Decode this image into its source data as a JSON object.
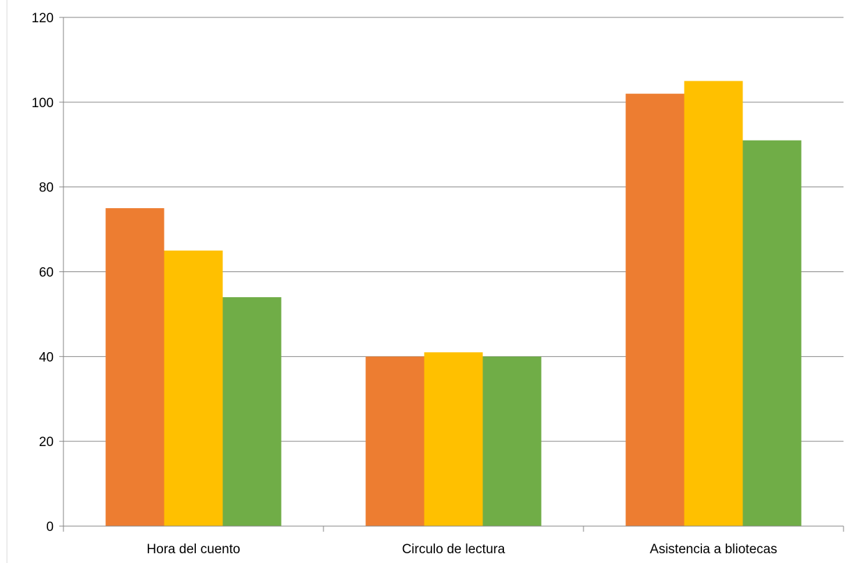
{
  "chart_data": {
    "type": "bar",
    "categories": [
      "Hora del cuento",
      "Circulo de lectura",
      "Asistencia a bliotecas"
    ],
    "series": [
      {
        "values": [
          75,
          40,
          102
        ],
        "color": "#ED7D31"
      },
      {
        "values": [
          65,
          41,
          105
        ],
        "color": "#FFC000"
      },
      {
        "values": [
          54,
          40,
          91
        ],
        "color": "#70AD47"
      }
    ],
    "ylim": [
      0,
      120
    ],
    "yticks": [
      "0",
      "20",
      "40",
      "60",
      "80",
      "100",
      "120"
    ],
    "grid": true,
    "legend": "none"
  }
}
